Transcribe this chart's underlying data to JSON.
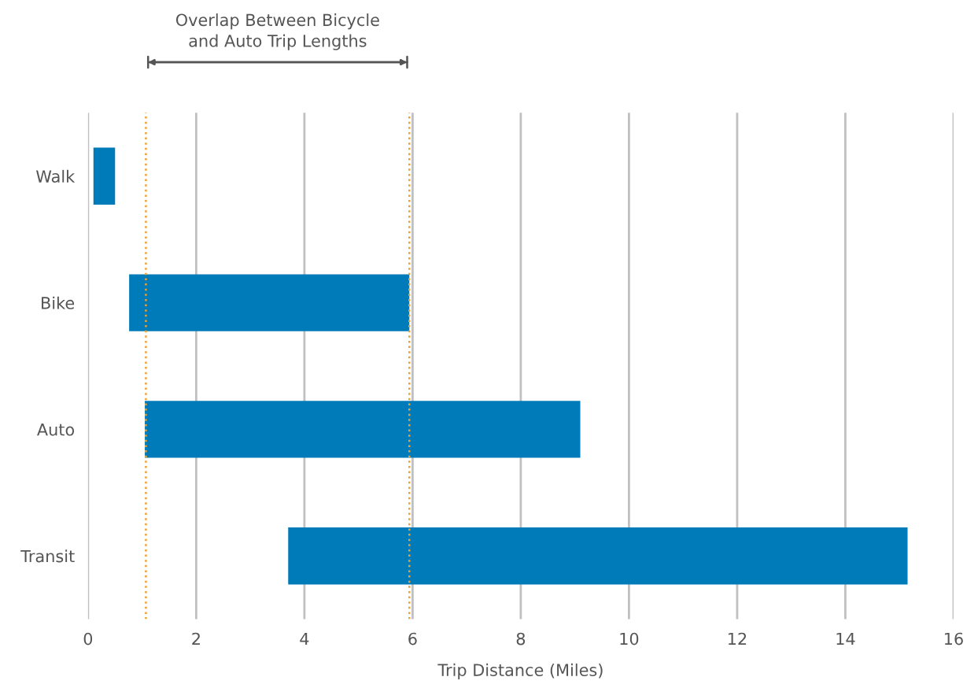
{
  "chart_data": {
    "type": "bar",
    "orientation": "horizontal",
    "xlabel": "Trip Distance (Miles)",
    "categories": [
      "Walk",
      "Bike",
      "Auto",
      "Transit"
    ],
    "base": [
      0.1,
      0.76,
      1.05,
      3.7
    ],
    "values": [
      0.4,
      5.18,
      8.05,
      11.45
    ],
    "color": "#007bba",
    "xlim": [
      0,
      16
    ],
    "xticks": [
      0,
      2,
      4,
      6,
      8,
      10,
      12,
      14,
      16
    ],
    "grid": "x",
    "ref_lines": [
      {
        "axis": "x",
        "value": 1.07,
        "color": "#f0a030",
        "line_style": "dotted"
      },
      {
        "axis": "x",
        "value": 5.94,
        "color": "#f0a030",
        "line_style": "dotted"
      }
    ],
    "annotations": [
      "Overlap Between Bicycle\nand Auto Trip Lengths"
    ]
  }
}
